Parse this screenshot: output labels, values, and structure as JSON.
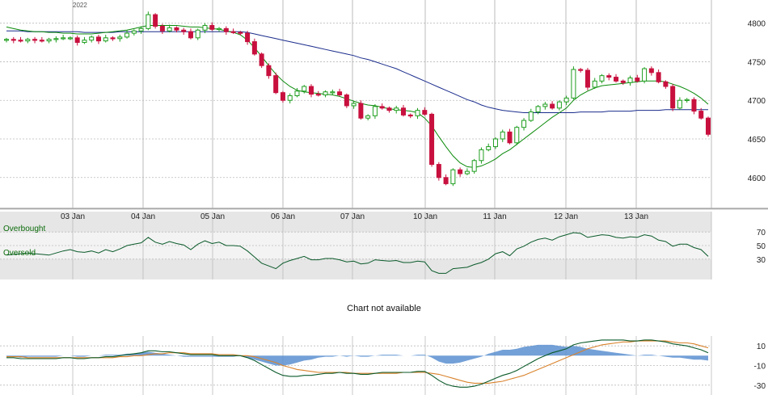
{
  "chart_data": [
    {
      "type": "candlestick",
      "title": "",
      "year_label": "2022",
      "x_ticks": [
        "03 Jan",
        "04 Jan",
        "05 Jan",
        "06 Jan",
        "07 Jan",
        "10 Jan",
        "11 Jan",
        "12 Jan",
        "13 Jan"
      ],
      "y_ticks": [
        4800,
        4750,
        4700,
        4650,
        4600
      ],
      "ylim": [
        4560,
        4830
      ],
      "grid": true,
      "colors": {
        "up": "#1f9e1f",
        "down": "#c8103e",
        "ma_short": "#0a8a0a",
        "ma_long": "#1a2c8c"
      },
      "close": [
        4779,
        4778,
        4777,
        4779,
        4778,
        4777,
        4779,
        4780,
        4781,
        4781,
        4775,
        4778,
        4782,
        4777,
        4781,
        4780,
        4782,
        4787,
        4790,
        4793,
        4811,
        4796,
        4790,
        4794,
        4791,
        4789,
        4781,
        4791,
        4797,
        4792,
        4793,
        4789,
        4788,
        4787,
        4776,
        4760,
        4745,
        4732,
        4710,
        4700,
        4706,
        4712,
        4718,
        4708,
        4707,
        4711,
        4711,
        4707,
        4693,
        4696,
        4677,
        4680,
        4692,
        4690,
        4687,
        4690,
        4681,
        4680,
        4687,
        4682,
        4617,
        4600,
        4592,
        4610,
        4605,
        4608,
        4622,
        4636,
        4640,
        4650,
        4659,
        4645,
        4665,
        4674,
        4685,
        4692,
        4695,
        4690,
        4698,
        4703,
        4740,
        4739,
        4717,
        4725,
        4732,
        4730,
        4725,
        4723,
        4729,
        4725,
        4741,
        4736,
        4724,
        4718,
        4690,
        4700,
        4701,
        4686,
        4677,
        4656
      ],
      "ma_short": [
        4795,
        4793,
        4791,
        4790,
        4789,
        4789,
        4788,
        4788,
        4787,
        4787,
        4786,
        4786,
        4786,
        4787,
        4788,
        4789,
        4790,
        4791,
        4793,
        4795,
        4797,
        4797,
        4797,
        4797,
        4797,
        4796,
        4795,
        4795,
        4794,
        4793,
        4792,
        4790,
        4788,
        4785,
        4778,
        4768,
        4757,
        4745,
        4734,
        4725,
        4718,
        4713,
        4711,
        4710,
        4709,
        4708,
        4707,
        4705,
        4702,
        4699,
        4696,
        4694,
        4693,
        4691,
        4689,
        4688,
        4687,
        4686,
        4684,
        4677,
        4667,
        4653,
        4640,
        4628,
        4619,
        4614,
        4613,
        4615,
        4619,
        4624,
        4631,
        4636,
        4643,
        4650,
        4657,
        4664,
        4671,
        4678,
        4684,
        4690,
        4700,
        4707,
        4712,
        4716,
        4719,
        4720,
        4721,
        4722,
        4723,
        4724,
        4725,
        4725,
        4725,
        4724,
        4721,
        4718,
        4714,
        4709,
        4703,
        4695
      ],
      "ma_long": [
        4790,
        4790,
        4790,
        4789,
        4789,
        4789,
        4789,
        4789,
        4789,
        4789,
        4789,
        4788,
        4788,
        4788,
        4788,
        4788,
        4789,
        4789,
        4789,
        4789,
        4789,
        4789,
        4789,
        4789,
        4789,
        4789,
        4789,
        4789,
        4789,
        4789,
        4789,
        4789,
        4789,
        4789,
        4788,
        4786,
        4784,
        4782,
        4780,
        4778,
        4776,
        4774,
        4772,
        4770,
        4768,
        4766,
        4764,
        4762,
        4760,
        4758,
        4755,
        4753,
        4750,
        4747,
        4744,
        4741,
        4737,
        4733,
        4729,
        4725,
        4721,
        4717,
        4713,
        4709,
        4705,
        4701,
        4698,
        4694,
        4691,
        4689,
        4687,
        4686,
        4685,
        4684,
        4684,
        4684,
        4684,
        4684,
        4684,
        4684,
        4684,
        4685,
        4685,
        4685,
        4685,
        4686,
        4686,
        4686,
        4686,
        4687,
        4687,
        4687,
        4687,
        4688,
        4688,
        4688,
        4688,
        4688,
        4688,
        4688
      ]
    },
    {
      "type": "line",
      "title": "",
      "labels": {
        "top": "Overbought",
        "bottom": "Oversold"
      },
      "y_ticks": [
        70,
        50,
        30
      ],
      "ylim": [
        0,
        100
      ],
      "color": "#0a5a2a",
      "values": [
        36,
        37,
        38,
        39,
        38,
        37,
        36,
        39,
        42,
        44,
        41,
        40,
        42,
        39,
        44,
        41,
        45,
        50,
        52,
        54,
        62,
        55,
        52,
        56,
        53,
        51,
        44,
        52,
        57,
        53,
        55,
        50,
        50,
        49,
        42,
        33,
        24,
        20,
        16,
        24,
        28,
        31,
        34,
        29,
        29,
        31,
        31,
        29,
        26,
        27,
        23,
        24,
        29,
        28,
        27,
        28,
        25,
        25,
        27,
        26,
        13,
        9,
        9,
        16,
        17,
        18,
        22,
        25,
        30,
        38,
        41,
        35,
        45,
        49,
        55,
        59,
        61,
        58,
        63,
        66,
        69,
        68,
        62,
        64,
        66,
        65,
        62,
        61,
        63,
        62,
        66,
        64,
        58,
        56,
        49,
        52,
        52,
        47,
        44,
        34
      ]
    },
    {
      "type": "line",
      "title": "",
      "y_ticks": [
        10,
        -10,
        -30
      ],
      "ylim": [
        -40,
        20
      ],
      "series_colors": {
        "macd": "#0b5a2a",
        "signal": "#d9822b",
        "histogram": "#5b8fd0"
      },
      "macd": [
        -2,
        -2,
        -3,
        -3,
        -3,
        -3,
        -3,
        -3,
        -2,
        -2,
        -3,
        -3,
        -2,
        -2,
        -1,
        -1,
        0,
        1,
        2,
        3,
        5,
        5,
        4,
        4,
        3,
        2,
        1,
        1,
        1,
        1,
        0,
        0,
        0,
        0,
        -2,
        -5,
        -9,
        -13,
        -17,
        -20,
        -21,
        -21,
        -20,
        -20,
        -19,
        -18,
        -18,
        -17,
        -18,
        -18,
        -19,
        -19,
        -18,
        -17,
        -17,
        -17,
        -17,
        -17,
        -16,
        -16,
        -20,
        -25,
        -29,
        -31,
        -32,
        -32,
        -31,
        -29,
        -26,
        -23,
        -20,
        -18,
        -15,
        -11,
        -7,
        -3,
        0,
        3,
        5,
        7,
        11,
        13,
        14,
        15,
        16,
        16,
        16,
        16,
        15,
        15,
        16,
        16,
        15,
        14,
        12,
        11,
        10,
        8,
        6,
        3
      ],
      "signal": [
        -1,
        -1,
        -1,
        -2,
        -2,
        -2,
        -2,
        -2,
        -2,
        -2,
        -2,
        -2,
        -2,
        -2,
        -2,
        -2,
        -1,
        -1,
        0,
        0,
        1,
        2,
        2,
        3,
        3,
        3,
        2,
        2,
        2,
        2,
        1,
        1,
        1,
        0,
        0,
        -1,
        -3,
        -5,
        -7,
        -10,
        -12,
        -14,
        -15,
        -16,
        -17,
        -17,
        -17,
        -17,
        -17,
        -18,
        -18,
        -18,
        -18,
        -18,
        -18,
        -18,
        -17,
        -17,
        -17,
        -17,
        -18,
        -19,
        -21,
        -23,
        -25,
        -27,
        -28,
        -28,
        -28,
        -27,
        -26,
        -24,
        -22,
        -20,
        -17,
        -14,
        -11,
        -8,
        -5,
        -2,
        1,
        4,
        7,
        9,
        11,
        12,
        13,
        14,
        14,
        15,
        15,
        15,
        15,
        15,
        14,
        13,
        13,
        12,
        10,
        8
      ]
    }
  ],
  "notice": "Chart not available"
}
